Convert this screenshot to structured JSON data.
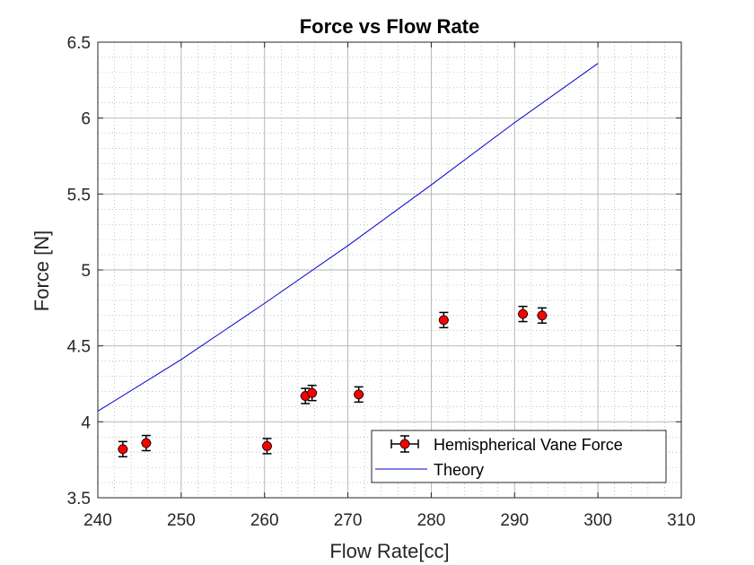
{
  "chart_data": {
    "type": "scatter",
    "title": "Force vs Flow Rate",
    "xlabel": "Flow Rate[cc]",
    "ylabel": "Force [N]",
    "xlim": [
      240,
      310
    ],
    "ylim": [
      3.5,
      6.5
    ],
    "xticks": [
      "240",
      "250",
      "260",
      "270",
      "280",
      "290",
      "300",
      "310"
    ],
    "yticks": [
      "3.5",
      "4",
      "4.5",
      "5",
      "5.5",
      "6",
      "6.5"
    ],
    "grid": true,
    "minor_grid": true,
    "legend_position": "bottom-right",
    "series": [
      {
        "name": "Hemispherical Vane Force",
        "kind": "errorbar",
        "color": "#ff0000",
        "error_color": "#000000",
        "x": [
          243.0,
          245.8,
          260.3,
          264.9,
          265.7,
          271.3,
          281.5,
          291.0,
          293.3
        ],
        "y": [
          3.82,
          3.86,
          3.84,
          4.17,
          4.19,
          4.18,
          4.67,
          4.71,
          4.7
        ],
        "y_err": [
          0.05,
          0.05,
          0.05,
          0.05,
          0.05,
          0.05,
          0.05,
          0.05,
          0.05
        ],
        "x_err": [
          0.6,
          0.6,
          0.6,
          0.6,
          0.6,
          0.6,
          0.6,
          0.6,
          0.6
        ]
      },
      {
        "name": "Theory",
        "kind": "line",
        "color": "#0000cc",
        "x": [
          240,
          250,
          260,
          270,
          280,
          290,
          300
        ],
        "y": [
          4.07,
          4.41,
          4.78,
          5.16,
          5.56,
          5.97,
          6.36
        ]
      }
    ]
  }
}
